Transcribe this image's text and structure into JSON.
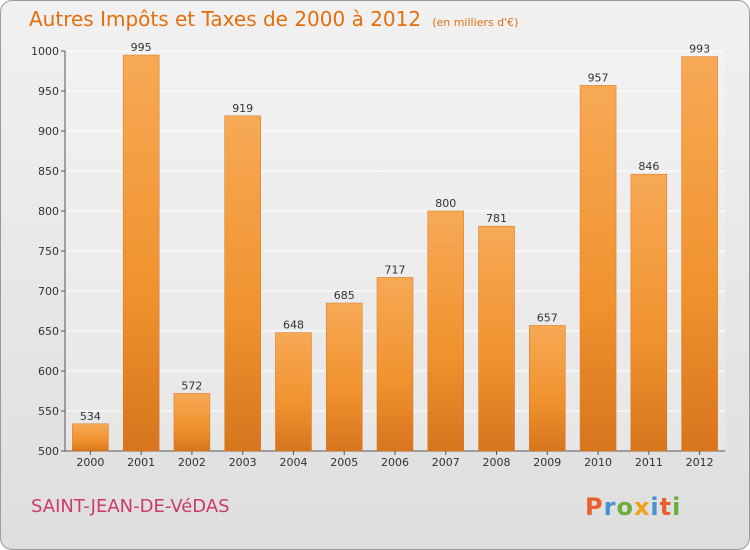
{
  "title": "Autres Impôts et Taxes de 2000 à 2012",
  "unit": "(en milliers d'€)",
  "location": "SAINT-JEAN-DE-VéDAS",
  "logo": {
    "text": "Proxiti"
  },
  "colors": {
    "bar": "#f0922e",
    "bar_light": "#f7a955",
    "bar_dark": "#d7751d",
    "title": "#e26f0d",
    "location": "#cc3a68",
    "grid": "#ffffff",
    "logo_letters": [
      "#e8602b",
      "#4a8fcf",
      "#6cae3c",
      "#f0a11a",
      "#4a8fcf",
      "#e8602b",
      "#6cae3c"
    ]
  },
  "chart_data": {
    "type": "bar",
    "categories": [
      "2000",
      "2001",
      "2002",
      "2003",
      "2004",
      "2005",
      "2006",
      "2007",
      "2008",
      "2009",
      "2010",
      "2011",
      "2012"
    ],
    "values": [
      534,
      995,
      572,
      919,
      648,
      685,
      717,
      800,
      781,
      657,
      957,
      846,
      993
    ],
    "ylim": [
      500,
      1000
    ],
    "yticks": [
      500,
      550,
      600,
      650,
      700,
      750,
      800,
      850,
      900,
      950,
      1000
    ],
    "grid": true,
    "legend": "none"
  }
}
